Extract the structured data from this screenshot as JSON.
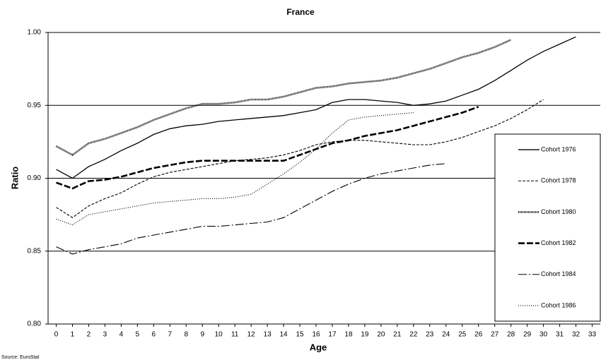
{
  "chart_data": {
    "type": "line",
    "title": "France",
    "x_label": "Age",
    "y_label": "Ratio",
    "source": "Source: EuroStat",
    "x": [
      0,
      1,
      2,
      3,
      4,
      5,
      6,
      7,
      8,
      9,
      10,
      11,
      12,
      13,
      14,
      15,
      16,
      17,
      18,
      19,
      20,
      21,
      22,
      23,
      24,
      25,
      26,
      27,
      28,
      29,
      30,
      31,
      32,
      33
    ],
    "xlim": [
      -0.5,
      33.5
    ],
    "ylim": [
      0.8,
      1.0
    ],
    "yticks": [
      {
        "value": 0.8,
        "label": "0.80"
      },
      {
        "value": 0.85,
        "label": "0.85"
      },
      {
        "value": 0.9,
        "label": "0.90"
      },
      {
        "value": 0.95,
        "label": "0.95"
      },
      {
        "value": 1.0,
        "label": "1.00"
      }
    ],
    "grid": true,
    "legend": "right",
    "series": [
      {
        "name": "Cohort 1976",
        "color": "#000000",
        "values": [
          0.906,
          0.9,
          0.908,
          0.913,
          0.919,
          0.924,
          0.93,
          0.934,
          0.936,
          0.937,
          0.939,
          0.94,
          0.941,
          0.942,
          0.943,
          0.945,
          0.947,
          0.952,
          0.954,
          0.954,
          0.953,
          0.952,
          0.95,
          0.951,
          0.953,
          0.957,
          0.961,
          0.967,
          0.974,
          0.981,
          0.987,
          0.992,
          0.997,
          null
        ]
      },
      {
        "name": "Cohort 1978",
        "color": "#000000",
        "values": [
          0.88,
          0.873,
          0.881,
          0.886,
          0.89,
          0.896,
          0.901,
          0.904,
          0.906,
          0.908,
          0.91,
          0.912,
          0.913,
          0.914,
          0.916,
          0.919,
          0.923,
          0.925,
          0.926,
          0.926,
          0.925,
          0.924,
          0.923,
          0.923,
          0.925,
          0.928,
          0.932,
          0.936,
          0.941,
          0.947,
          0.954,
          null,
          null,
          null
        ]
      },
      {
        "name": "Cohort 1980",
        "color": "#000000",
        "values": [
          0.922,
          0.916,
          0.924,
          0.927,
          0.931,
          0.935,
          0.94,
          0.944,
          0.948,
          0.951,
          0.951,
          0.952,
          0.954,
          0.954,
          0.956,
          0.959,
          0.962,
          0.963,
          0.965,
          0.966,
          0.967,
          0.969,
          0.972,
          0.975,
          0.979,
          0.983,
          0.986,
          0.99,
          0.995,
          null,
          null,
          null,
          null,
          null
        ]
      },
      {
        "name": "Cohort 1982",
        "color": "#000000",
        "values": [
          0.897,
          0.893,
          0.898,
          0.899,
          0.901,
          0.904,
          0.907,
          0.909,
          0.911,
          0.912,
          0.912,
          0.912,
          0.912,
          0.912,
          0.912,
          0.916,
          0.92,
          0.924,
          0.926,
          0.929,
          0.931,
          0.933,
          0.936,
          0.939,
          0.942,
          0.945,
          0.949,
          null,
          null,
          null,
          null,
          null,
          null,
          null
        ]
      },
      {
        "name": "Cohort 1984",
        "color": "#000000",
        "values": [
          0.853,
          0.848,
          0.851,
          0.853,
          0.855,
          0.859,
          0.861,
          0.863,
          0.865,
          0.867,
          0.867,
          0.868,
          0.869,
          0.87,
          0.873,
          0.879,
          0.885,
          0.891,
          0.896,
          0.9,
          0.903,
          0.905,
          0.907,
          0.909,
          0.91,
          null,
          null,
          null,
          null,
          null,
          null,
          null,
          null,
          null
        ]
      },
      {
        "name": "Cohort 1986",
        "color": "#000000",
        "values": [
          0.872,
          0.868,
          0.875,
          0.877,
          0.879,
          0.881,
          0.883,
          0.884,
          0.885,
          0.886,
          0.886,
          0.887,
          0.889,
          0.896,
          0.903,
          0.911,
          0.92,
          0.931,
          0.94,
          0.942,
          0.943,
          0.944,
          0.945,
          null,
          null,
          null,
          null,
          null,
          null,
          null,
          null,
          null,
          null,
          null
        ]
      }
    ]
  }
}
